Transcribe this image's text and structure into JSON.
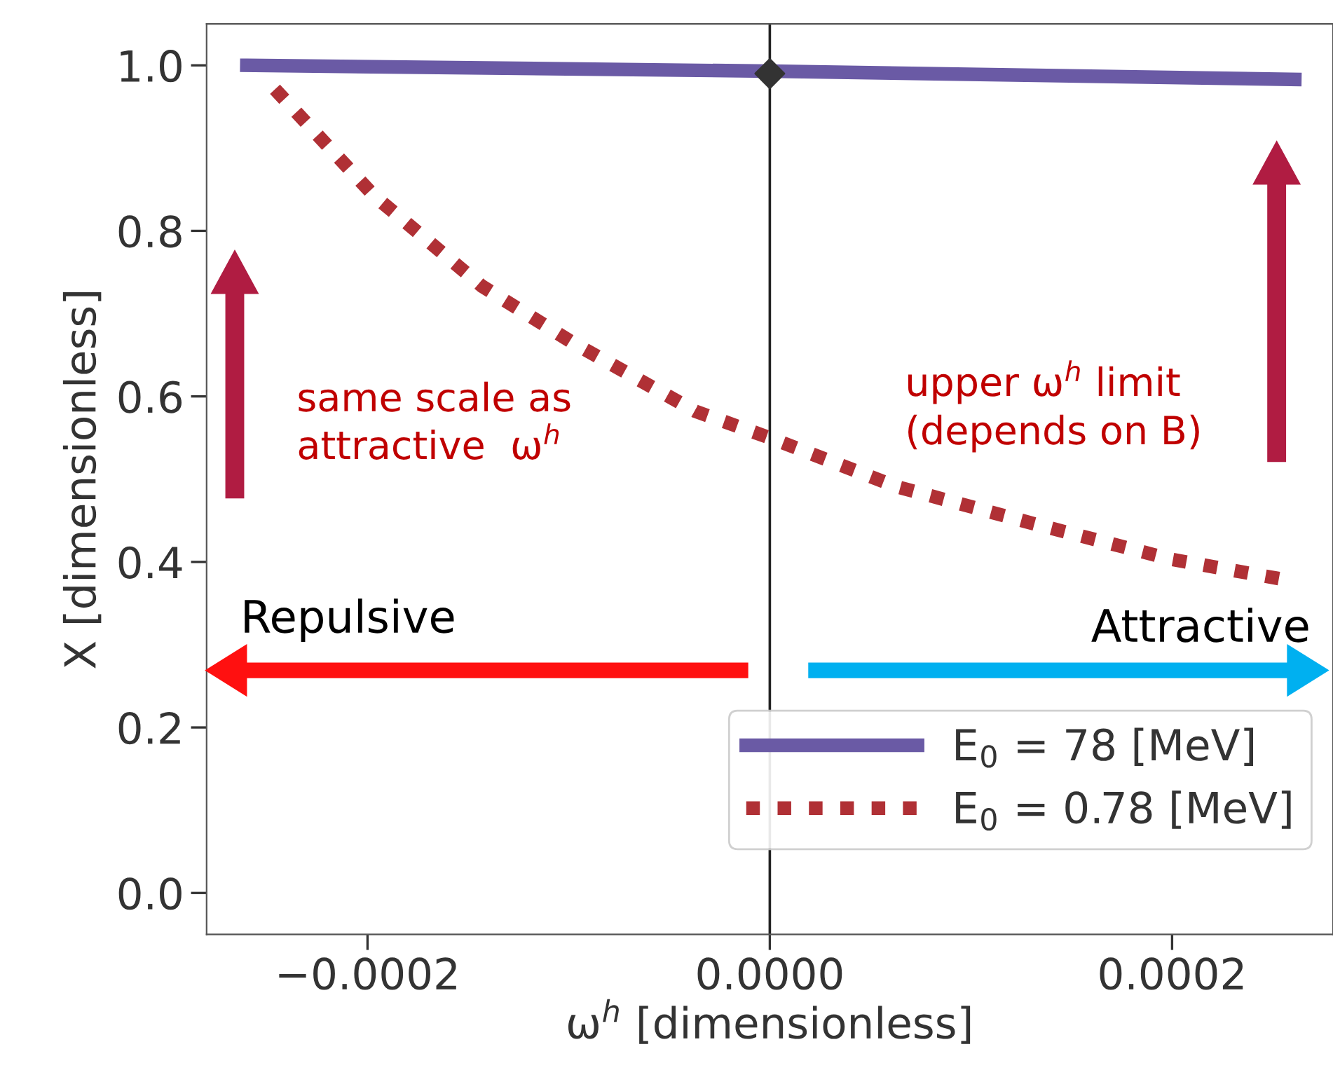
{
  "chart_data": {
    "type": "line",
    "xlabel": "ω$^{h}$ [dimensionless]",
    "ylabel": "X [dimensionless]",
    "xlim": [
      -0.00028,
      0.00028
    ],
    "xticks": [
      {
        "value": -0.0002,
        "label": "−0.0002"
      },
      {
        "value": 0,
        "label": "0.0000"
      },
      {
        "value": 0.0002,
        "label": "0.0002"
      }
    ],
    "ylim": [
      -0.05,
      1.05
    ],
    "yticks": [
      {
        "value": 0,
        "label": "0.0"
      },
      {
        "value": 0.2,
        "label": "0.2"
      },
      {
        "value": 0.4,
        "label": "0.4"
      },
      {
        "value": 0.6,
        "label": "0.6"
      },
      {
        "value": 0.8,
        "label": "0.8"
      },
      {
        "value": 1.0,
        "label": "1.0"
      }
    ],
    "series": [
      {
        "name": "E$_{0}$ = 78 [MeV]",
        "color": "#6a5aa5",
        "line_style": "solid",
        "x": [
          -0.00026,
          0,
          0.000261
        ],
        "values": [
          1.0,
          0.993,
          0.983
        ]
      },
      {
        "name": "E$_{0}$ = 0.78 [MeV]",
        "color": "#b03035",
        "line_style": "dotted",
        "x": [
          -0.000246,
          -0.000197,
          -0.000143,
          -9.8e-05,
          -3.7e-05,
          0,
          6.3e-05,
          0.000133,
          0.0002,
          0.000255
        ],
        "values": [
          0.971,
          0.843,
          0.733,
          0.665,
          0.582,
          0.55,
          0.491,
          0.445,
          0.403,
          0.379
        ]
      },
      {
        "type": "scatter",
        "color": "#333333",
        "marker": "diamond",
        "x": [
          0
        ],
        "values": [
          0.99
        ]
      }
    ],
    "ref_lines": [
      {
        "axis": "x",
        "value": 0,
        "color": "#222222",
        "line_style": "solid"
      }
    ],
    "annotations": [
      "same scale as\nattractive  ω$^{h}$",
      "upper ω$^{h}$ limit\n(depends on B)",
      "Repulsive",
      "Attractive"
    ],
    "legend": "bottom right",
    "grid": false
  }
}
